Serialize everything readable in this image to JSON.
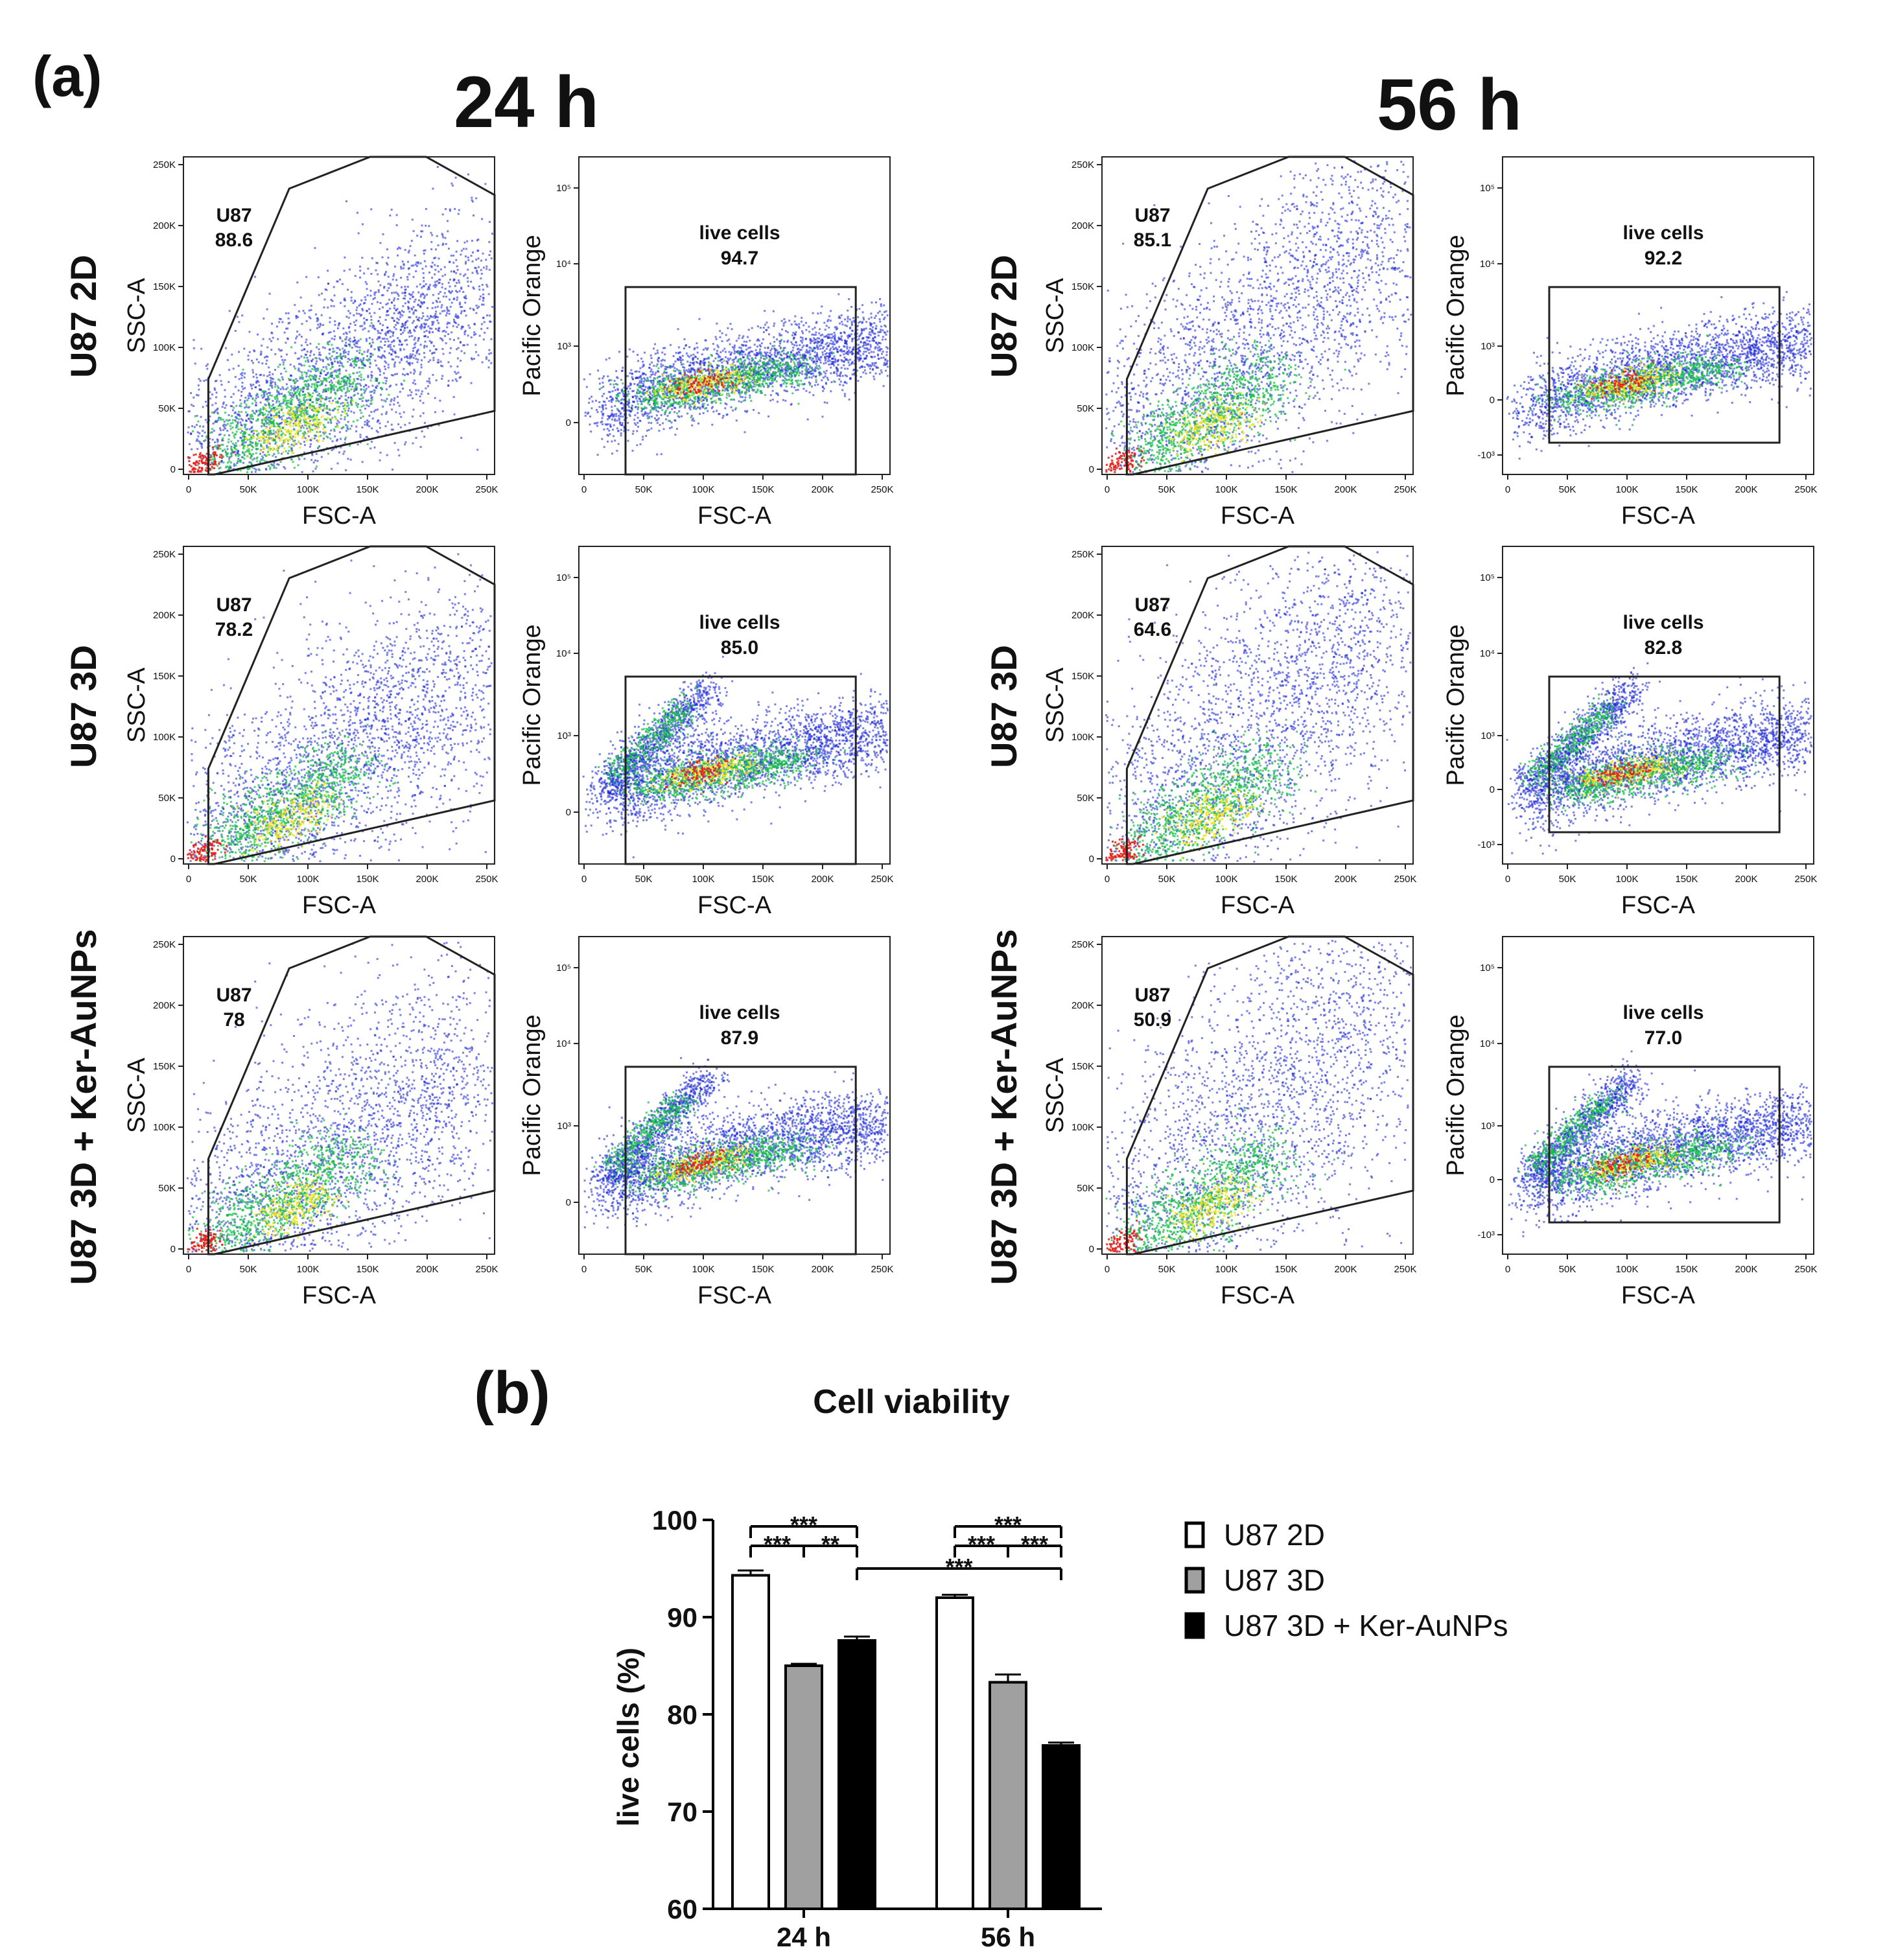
{
  "panel_a": {
    "label": "(a)",
    "timepoints": [
      "24 h",
      "56 h"
    ],
    "rows": [
      "U87 2D",
      "U87 3D",
      "U87 3D + Ker-AuNPs"
    ],
    "plot1": {
      "xlabel": "FSC-A",
      "ylabel": "SSC-A",
      "xticks": [
        "0",
        "50K",
        "100K",
        "150K",
        "200K",
        "250K"
      ],
      "yticks": [
        "0",
        "50K",
        "100K",
        "150K",
        "200K",
        "250K"
      ],
      "gate_name": "U87"
    },
    "plot2": {
      "xlabel": "FSC-A",
      "ylabel": "Pacific Orange",
      "xticks": [
        "0",
        "50K",
        "100K",
        "150K",
        "200K",
        "250K"
      ],
      "gate_name": "live cells"
    },
    "plot2_yticks_24h": [
      "0",
      "10³",
      "10⁴",
      "10⁵"
    ],
    "plot2_yticks_56h": [
      "-10³",
      "0",
      "10³",
      "10⁴",
      "10⁵"
    ],
    "gate_values": {
      "24h": {
        "u87": [
          "88.6",
          "78.2",
          "78"
        ],
        "live": [
          "94.7",
          "85.0",
          "87.9"
        ]
      },
      "56h": {
        "u87": [
          "85.1",
          "64.6",
          "50.9"
        ],
        "live": [
          "92.2",
          "82.8",
          "77.0"
        ]
      }
    },
    "colors": {
      "low": "#1f2bd8",
      "mid": "#18c04a",
      "high": "#f0e020",
      "peak": "#e8201a",
      "gate": "#222222"
    }
  },
  "panel_b": {
    "label": "(b)",
    "chart_data": {
      "type": "bar",
      "title": "Cell viability",
      "xlabel": "",
      "ylabel": "live cells (%)",
      "ylim": [
        60,
        100
      ],
      "yticks": [
        "60",
        "70",
        "80",
        "90",
        "100"
      ],
      "categories": [
        "24 h",
        "56 h"
      ],
      "series": [
        {
          "name": "U87 2D",
          "values": [
            94.3,
            92.0
          ],
          "errors": [
            0.5,
            0.3
          ],
          "color": "#ffffff"
        },
        {
          "name": "U87 3D",
          "values": [
            85.0,
            83.3
          ],
          "errors": [
            0.2,
            0.8
          ],
          "color": "#a0a0a0"
        },
        {
          "name": "U87 3D + Ker-AuNPs",
          "values": [
            87.6,
            76.8
          ],
          "errors": [
            0.4,
            0.3
          ],
          "color": "#000000"
        }
      ],
      "significance": [
        {
          "group": "24h",
          "from": 0,
          "to": 2,
          "text": "***",
          "level": "top"
        },
        {
          "group": "24h",
          "from": 0,
          "to": 1,
          "text": "***",
          "level": "lower"
        },
        {
          "group": "24h",
          "from": 1,
          "to": 2,
          "text": "**",
          "level": "lower"
        },
        {
          "group": "56h",
          "from": 0,
          "to": 2,
          "text": "***",
          "level": "top"
        },
        {
          "group": "56h",
          "from": 0,
          "to": 1,
          "text": "***",
          "level": "lower"
        },
        {
          "group": "56h",
          "from": 1,
          "to": 2,
          "text": "***",
          "level": "lower"
        },
        {
          "group": "cross",
          "from": "24h-2",
          "to": "56h-2",
          "text": "***",
          "level": "bottom"
        }
      ]
    }
  }
}
